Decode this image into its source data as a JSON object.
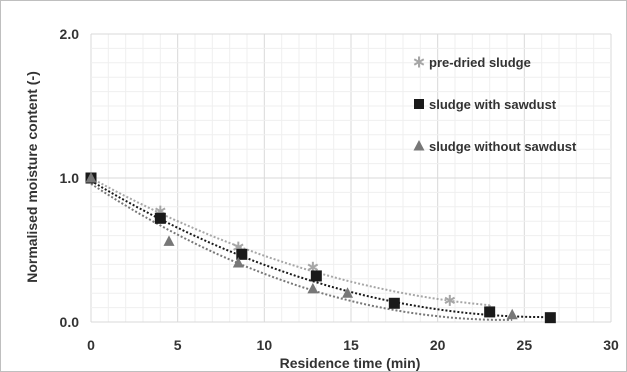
{
  "chart_data": {
    "type": "scatter",
    "xlabel": "Residence time (min)",
    "ylabel": "Normalised moisture content  (-)",
    "xlim": [
      0,
      30
    ],
    "ylim": [
      0,
      2.0
    ],
    "x_ticks": [
      "0",
      "5",
      "10",
      "15",
      "20",
      "25",
      "30"
    ],
    "y_ticks": [
      "0.0",
      "1.0",
      "2.0"
    ],
    "grid": true,
    "legend_position": "top-right",
    "series": [
      {
        "name": "pre-dried sludge",
        "marker": "asterisk",
        "color": "#a6a6a6",
        "points": [
          [
            0,
            1.0
          ],
          [
            4,
            0.77
          ],
          [
            8.5,
            0.52
          ],
          [
            12.8,
            0.38
          ],
          [
            20.7,
            0.15
          ],
          [
            23,
            0.08
          ]
        ],
        "trend": [
          1.0,
          -0.066,
          0.0012
        ]
      },
      {
        "name": "sludge with sawdust",
        "marker": "square",
        "color": "#1a1a1a",
        "points": [
          [
            0,
            1.0
          ],
          [
            4,
            0.72
          ],
          [
            8.7,
            0.47
          ],
          [
            13,
            0.32
          ],
          [
            17.5,
            0.13
          ],
          [
            23,
            0.07
          ],
          [
            26.5,
            0.03
          ]
        ],
        "trend": [
          0.98,
          -0.072,
          0.00137
        ]
      },
      {
        "name": "sludge without sawdust",
        "marker": "triangle",
        "color": "#777777",
        "points": [
          [
            0,
            1.0
          ],
          [
            4.5,
            0.56
          ],
          [
            8.5,
            0.41
          ],
          [
            12.8,
            0.23
          ],
          [
            14.8,
            0.2
          ],
          [
            24.3,
            0.05
          ]
        ],
        "trend": [
          0.96,
          -0.079,
          0.00165
        ]
      }
    ]
  }
}
